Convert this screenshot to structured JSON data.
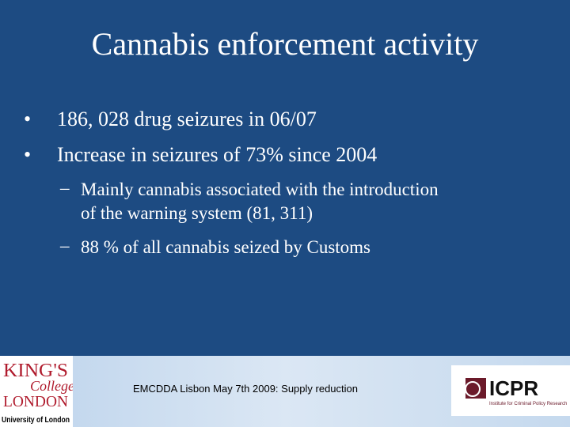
{
  "title": "Cannabis enforcement activity",
  "bullets": [
    "186, 028 drug seizures in 06/07",
    "Increase in seizures of 73% since 2004"
  ],
  "sub_bullets": [
    {
      "lines": [
        "Mainly cannabis associated with the introduction",
        "of the warning system (81, 311)"
      ]
    },
    {
      "lines": [
        "88 % of all cannabis seized by Customs"
      ]
    }
  ],
  "footer": "EMCDDA Lisbon May 7th 2009: Supply reduction",
  "logos": {
    "kcl": {
      "line1": "KING'S",
      "line2": "College",
      "line3": "LONDON",
      "line4": "University of London"
    },
    "icpr": {
      "name": "ICPR",
      "tagline": "Institute for Criminal Policy Research"
    }
  }
}
